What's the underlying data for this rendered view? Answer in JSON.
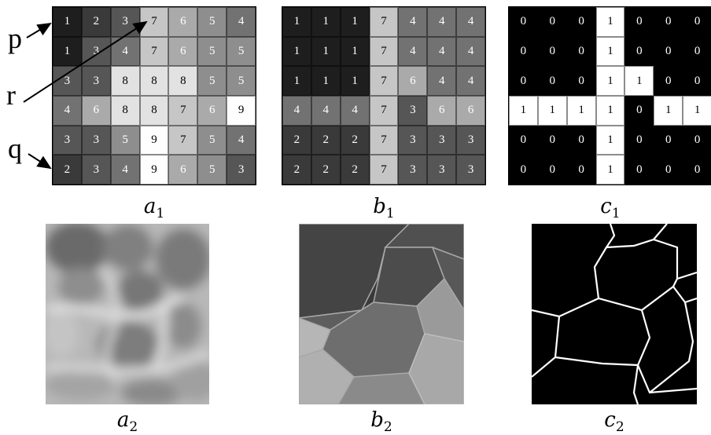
{
  "grids": {
    "a1": {
      "values": [
        [
          1,
          2,
          3,
          7,
          6,
          5,
          4
        ],
        [
          1,
          3,
          4,
          7,
          6,
          5,
          5
        ],
        [
          3,
          3,
          8,
          8,
          8,
          5,
          5
        ],
        [
          4,
          6,
          8,
          8,
          7,
          6,
          9
        ],
        [
          3,
          3,
          5,
          9,
          7,
          5,
          4
        ],
        [
          2,
          3,
          4,
          9,
          6,
          5,
          3
        ]
      ]
    },
    "b1": {
      "values": [
        [
          1,
          1,
          1,
          7,
          4,
          4,
          4
        ],
        [
          1,
          1,
          1,
          7,
          4,
          4,
          4
        ],
        [
          1,
          1,
          1,
          7,
          6,
          4,
          4
        ],
        [
          4,
          4,
          4,
          7,
          3,
          6,
          6
        ],
        [
          2,
          2,
          2,
          7,
          3,
          3,
          3
        ],
        [
          2,
          2,
          2,
          7,
          3,
          3,
          3
        ]
      ]
    },
    "c1": {
      "values": [
        [
          0,
          0,
          0,
          1,
          0,
          0,
          0
        ],
        [
          0,
          0,
          0,
          1,
          0,
          0,
          0
        ],
        [
          0,
          0,
          0,
          1,
          1,
          0,
          0
        ],
        [
          1,
          1,
          1,
          1,
          0,
          1,
          1
        ],
        [
          0,
          0,
          0,
          1,
          0,
          0,
          0
        ],
        [
          0,
          0,
          0,
          1,
          0,
          0,
          0
        ]
      ]
    }
  },
  "captions": {
    "a1": {
      "letter": "a",
      "index": "1"
    },
    "b1": {
      "letter": "b",
      "index": "1"
    },
    "c1": {
      "letter": "c",
      "index": "1"
    },
    "a2": {
      "letter": "a",
      "index": "2"
    },
    "b2": {
      "letter": "b",
      "index": "2"
    },
    "c2": {
      "letter": "c",
      "index": "2"
    }
  },
  "markers": {
    "p": "p",
    "r": "r",
    "q": "q"
  }
}
